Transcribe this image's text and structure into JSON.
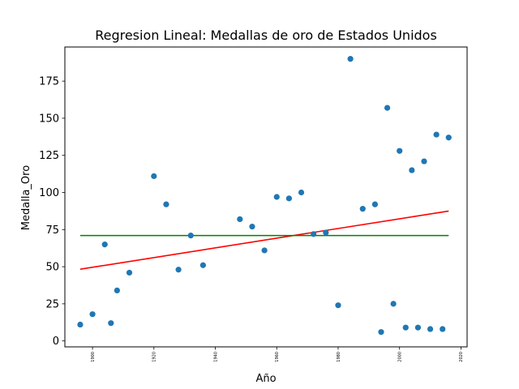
{
  "chart_data": {
    "type": "scatter",
    "title": "Regresion Lineal: Medallas de oro de Estados Unidos",
    "xlabel": "Año",
    "ylabel": "Medalla_Oro",
    "xlim": [
      1891,
      2022
    ],
    "ylim": [
      -4,
      198
    ],
    "xticks": [
      1900,
      1920,
      1940,
      1960,
      1980,
      2000,
      2020
    ],
    "yticks": [
      0,
      25,
      50,
      75,
      100,
      125,
      150,
      175
    ],
    "grid": false,
    "colors": {
      "points": "#1f77b4",
      "regression": "#ff0000",
      "mean": "#008000"
    },
    "points": [
      {
        "x": 1896,
        "y": 11
      },
      {
        "x": 1900,
        "y": 18
      },
      {
        "x": 1904,
        "y": 65
      },
      {
        "x": 1906,
        "y": 12
      },
      {
        "x": 1908,
        "y": 34
      },
      {
        "x": 1912,
        "y": 46
      },
      {
        "x": 1920,
        "y": 111
      },
      {
        "x": 1924,
        "y": 92
      },
      {
        "x": 1928,
        "y": 48
      },
      {
        "x": 1932,
        "y": 71
      },
      {
        "x": 1936,
        "y": 51
      },
      {
        "x": 1948,
        "y": 82
      },
      {
        "x": 1952,
        "y": 77
      },
      {
        "x": 1956,
        "y": 61
      },
      {
        "x": 1960,
        "y": 97
      },
      {
        "x": 1964,
        "y": 96
      },
      {
        "x": 1968,
        "y": 100
      },
      {
        "x": 1972,
        "y": 72
      },
      {
        "x": 1976,
        "y": 73
      },
      {
        "x": 1980,
        "y": 24
      },
      {
        "x": 1984,
        "y": 190
      },
      {
        "x": 1988,
        "y": 89
      },
      {
        "x": 1992,
        "y": 92
      },
      {
        "x": 1994,
        "y": 6
      },
      {
        "x": 1996,
        "y": 157
      },
      {
        "x": 1998,
        "y": 25
      },
      {
        "x": 2000,
        "y": 128
      },
      {
        "x": 2002,
        "y": 9
      },
      {
        "x": 2004,
        "y": 115
      },
      {
        "x": 2006,
        "y": 9
      },
      {
        "x": 2008,
        "y": 121
      },
      {
        "x": 2010,
        "y": 8
      },
      {
        "x": 2012,
        "y": 139
      },
      {
        "x": 2014,
        "y": 8
      },
      {
        "x": 2016,
        "y": 137
      }
    ],
    "series": [
      {
        "values": [
          [
            1896,
            48.3
          ],
          [
            2016,
            87.5
          ]
        ]
      },
      {
        "values": [
          [
            1896,
            71
          ],
          [
            2016,
            71
          ]
        ]
      }
    ]
  }
}
